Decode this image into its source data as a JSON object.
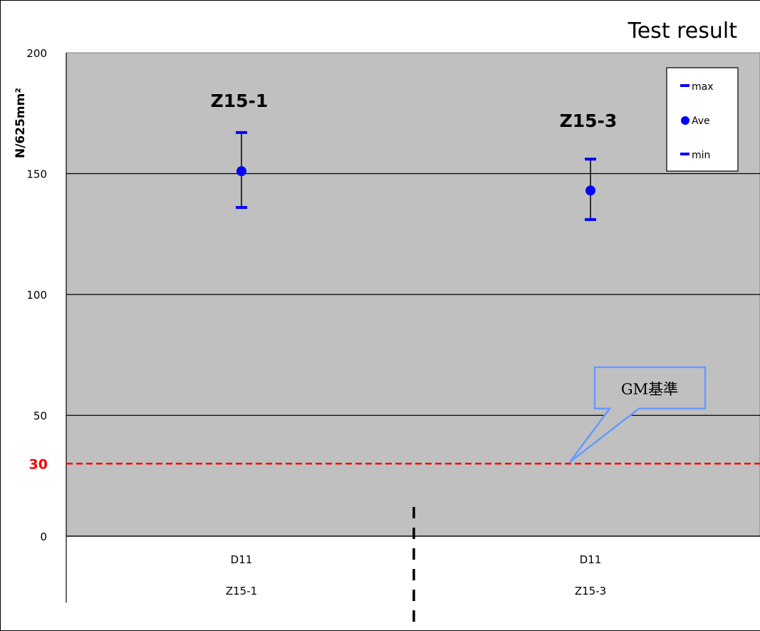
{
  "chart_data": {
    "type": "scatter",
    "title": "Test result",
    "ylabel": "N/625mm²",
    "ylim": [
      0,
      200
    ],
    "yticks": [
      0,
      50,
      100,
      150,
      200
    ],
    "grid": true,
    "legend_position": "top-right",
    "legend": [
      "max",
      "Ave",
      "min"
    ],
    "categories": [
      {
        "line1": "D11",
        "line2": "Z15-1",
        "label": "Z15-1"
      },
      {
        "line1": "D11",
        "line2": "Z15-3",
        "label": "Z15-3"
      }
    ],
    "series": [
      {
        "name": "max",
        "values": [
          167,
          156
        ]
      },
      {
        "name": "Ave",
        "values": [
          151,
          143
        ]
      },
      {
        "name": "min",
        "values": [
          136,
          131
        ]
      }
    ],
    "reference_line": {
      "value": 30,
      "label": "30",
      "color": "#ff0000"
    },
    "callout": {
      "text": "GM基準"
    }
  },
  "colors": {
    "plot_background": "#c0c0c0",
    "marker": "#0000ff",
    "error_bar": "#000000",
    "reference_line": "#ff0000",
    "callout_border": "#6699ff"
  }
}
